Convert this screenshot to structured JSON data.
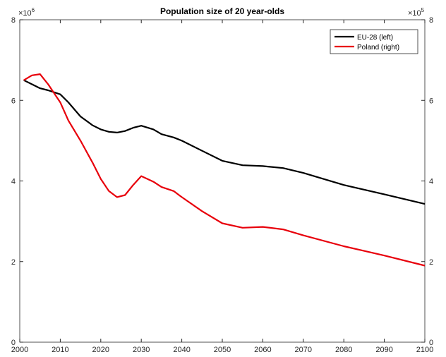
{
  "chart_data": {
    "type": "line",
    "title": "Population size of 20 year-olds",
    "y_multiplier": {
      "base": "×10",
      "power": "6"
    },
    "y2_multiplier": {
      "base": "×10",
      "power": "5"
    },
    "x": [
      2001,
      2003,
      2005,
      2007,
      2010,
      2012,
      2015,
      2018,
      2020,
      2022,
      2024,
      2026,
      2028,
      2030,
      2033,
      2035,
      2038,
      2040,
      2045,
      2050,
      2055,
      2060,
      2065,
      2070,
      2080,
      2090,
      2100
    ],
    "series": [
      {
        "name": "EU-28 (left)",
        "color": "#000000",
        "axis": "y",
        "values": [
          6.5,
          6.4,
          6.3,
          6.25,
          6.15,
          5.95,
          5.6,
          5.38,
          5.28,
          5.22,
          5.2,
          5.24,
          5.32,
          5.37,
          5.28,
          5.16,
          5.08,
          5.0,
          4.75,
          4.5,
          4.39,
          4.37,
          4.32,
          4.2,
          3.9,
          3.67,
          3.43
        ]
      },
      {
        "name": "Poland (right)",
        "color": "#e8000b",
        "axis": "y2",
        "values": [
          6.5,
          6.62,
          6.65,
          6.4,
          5.95,
          5.5,
          5.0,
          4.45,
          4.05,
          3.75,
          3.6,
          3.65,
          3.9,
          4.12,
          3.98,
          3.85,
          3.75,
          3.6,
          3.25,
          2.95,
          2.84,
          2.86,
          2.8,
          2.65,
          2.38,
          2.15,
          1.9
        ]
      }
    ],
    "xlim": [
      2000,
      2100
    ],
    "xticks": [
      2000,
      2010,
      2020,
      2030,
      2040,
      2050,
      2060,
      2070,
      2080,
      2090,
      2100
    ],
    "ylim": [
      0,
      8
    ],
    "yticks": [
      0,
      2,
      4,
      6,
      8
    ],
    "y2lim": [
      0,
      8
    ],
    "y2ticks": [
      0,
      2,
      4,
      6,
      8
    ],
    "grid": false,
    "legend": "top-right"
  }
}
